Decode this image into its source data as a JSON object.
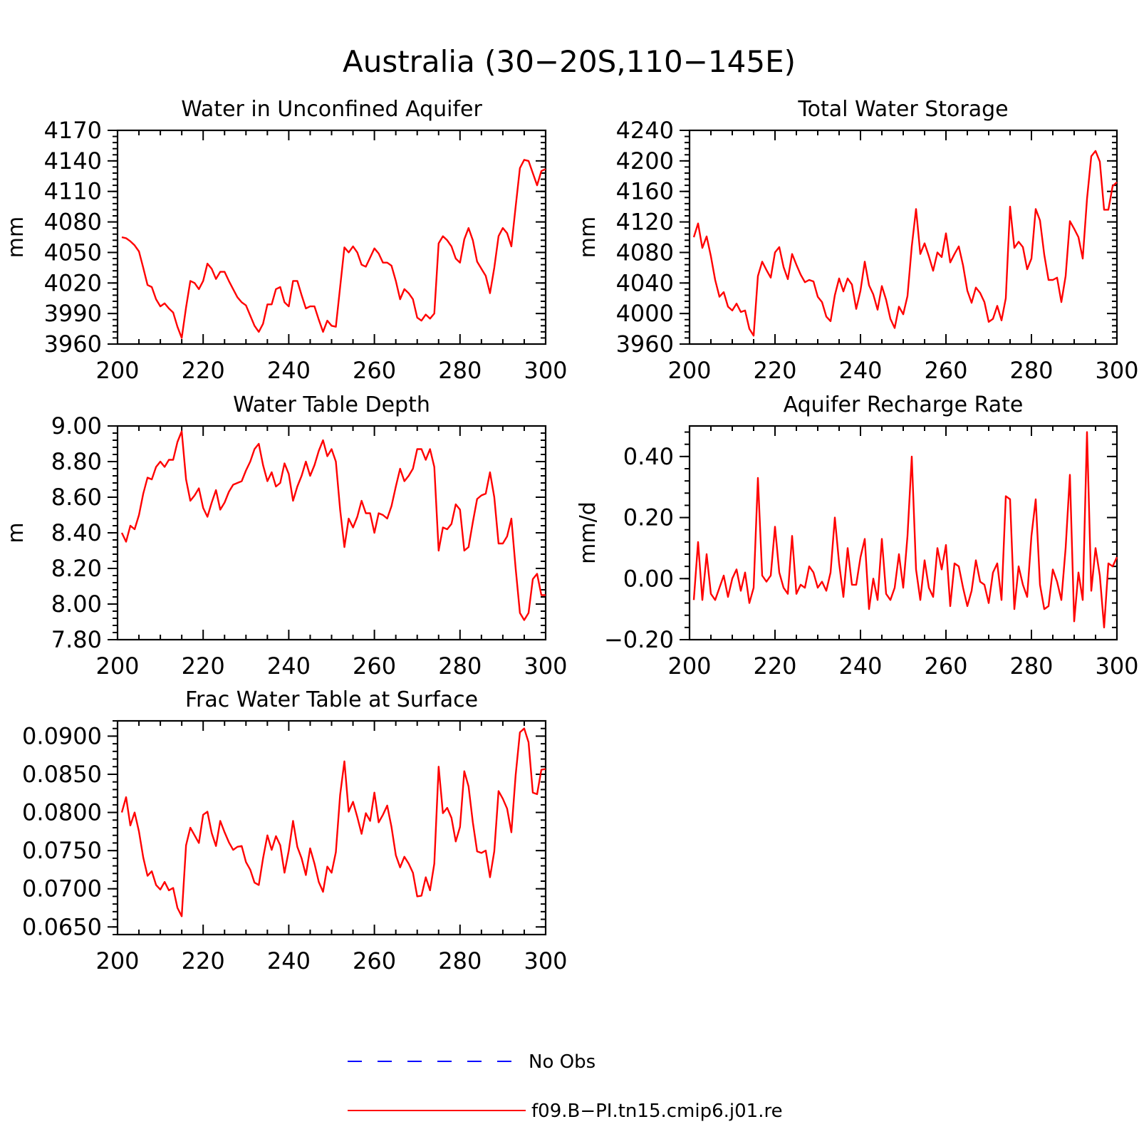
{
  "figure": {
    "title": "Australia (30−20S,110−145E)"
  },
  "colors": {
    "model_line": "#ff0000",
    "obs_line": "#0000ff",
    "axes": "#000000",
    "background": "#ffffff"
  },
  "legend": {
    "placement": "bottom-center",
    "entries": [
      {
        "label": "No Obs",
        "style": "dashed",
        "color": "#0000ff"
      },
      {
        "label": "f09.B−PI.tn15.cmip6.j01.re",
        "style": "solid",
        "color": "#ff0000"
      }
    ]
  },
  "chart_data": [
    {
      "type": "line",
      "title": "Water in Unconfined Aquifer",
      "ylabel": "mm",
      "xlabel": "",
      "xlim": [
        200,
        300
      ],
      "ylim": [
        3960,
        4170
      ],
      "x_ticks": [
        "200",
        "220",
        "240",
        "260",
        "280",
        "300"
      ],
      "y_ticks": [
        "3960",
        "3990",
        "4020",
        "4050",
        "4080",
        "4110",
        "4140",
        "4170"
      ],
      "x_start": 201,
      "series": [
        {
          "name": "f09.B−PI.tn15.cmip6.j01.re",
          "values": [
            4065,
            4064,
            4061,
            4057,
            4051,
            4035,
            4018,
            4016,
            4004,
            3997,
            4000,
            3995,
            3991,
            3977,
            3966,
            3996,
            4022,
            4020,
            4014,
            4022,
            4039,
            4034,
            4024,
            4031,
            4031,
            4022,
            4014,
            4006,
            4001,
            3998,
            3988,
            3978,
            3972,
            3980,
            3999,
            3999,
            4014,
            4016,
            4001,
            3997,
            4022,
            4022,
            4008,
            3995,
            3997,
            3997,
            3984,
            3972,
            3983,
            3978,
            3977,
            4016,
            4055,
            4050,
            4056,
            4050,
            4038,
            4036,
            4045,
            4054,
            4049,
            4040,
            4040,
            4037,
            4022,
            4004,
            4014,
            4010,
            4004,
            3986,
            3983,
            3989,
            3985,
            3990,
            4059,
            4066,
            4062,
            4056,
            4044,
            4040,
            4063,
            4074,
            4062,
            4041,
            4034,
            4027,
            4010,
            4035,
            4066,
            4074,
            4069,
            4056,
            4095,
            4133,
            4141,
            4140,
            4128,
            4116,
            4130,
            4132
          ]
        }
      ]
    },
    {
      "type": "line",
      "title": "Total Water Storage",
      "ylabel": "mm",
      "xlabel": "",
      "xlim": [
        200,
        300
      ],
      "ylim": [
        3960,
        4240
      ],
      "x_ticks": [
        "200",
        "220",
        "240",
        "260",
        "280",
        "300"
      ],
      "y_ticks": [
        "3960",
        "4000",
        "4040",
        "4080",
        "4120",
        "4160",
        "4200",
        "4240"
      ],
      "x_start": 201,
      "series": [
        {
          "name": "f09.B−PI.tn15.cmip6.j01.re",
          "values": [
            4100,
            4118,
            4086,
            4101,
            4075,
            4044,
            4022,
            4028,
            4009,
            4004,
            4013,
            4002,
            4004,
            3980,
            3971,
            4049,
            4068,
            4057,
            4047,
            4080,
            4087,
            4061,
            4045,
            4078,
            4064,
            4051,
            4041,
            4044,
            4042,
            4022,
            4015,
            3996,
            3990,
            4024,
            4046,
            4029,
            4046,
            4038,
            4006,
            4030,
            4068,
            4037,
            4025,
            4005,
            4036,
            4018,
            3993,
            3981,
            4009,
            3999,
            4023,
            4088,
            4137,
            4078,
            4092,
            4075,
            4056,
            4080,
            4074,
            4105,
            4067,
            4078,
            4088,
            4063,
            4030,
            4014,
            4034,
            4027,
            4015,
            3989,
            3993,
            4010,
            3991,
            4020,
            4140,
            4086,
            4094,
            4087,
            4058,
            4072,
            4137,
            4122,
            4077,
            4044,
            4044,
            4047,
            4015,
            4049,
            4121,
            4111,
            4100,
            4072,
            4150,
            4206,
            4213,
            4199,
            4136,
            4136,
            4167,
            4172
          ]
        }
      ]
    },
    {
      "type": "line",
      "title": "Water Table Depth",
      "ylabel": "m",
      "xlabel": "",
      "xlim": [
        200,
        300
      ],
      "ylim": [
        7.8,
        9.0
      ],
      "x_ticks": [
        "200",
        "220",
        "240",
        "260",
        "280",
        "300"
      ],
      "y_ticks": [
        "7.80",
        "8.00",
        "8.20",
        "8.40",
        "8.60",
        "8.80",
        "9.00"
      ],
      "x_start": 201,
      "series": [
        {
          "name": "f09.B−PI.tn15.cmip6.j01.re",
          "values": [
            8.4,
            8.35,
            8.44,
            8.42,
            8.5,
            8.62,
            8.71,
            8.7,
            8.77,
            8.8,
            8.77,
            8.81,
            8.81,
            8.91,
            8.97,
            8.7,
            8.58,
            8.61,
            8.65,
            8.54,
            8.49,
            8.57,
            8.64,
            8.53,
            8.57,
            8.63,
            8.67,
            8.68,
            8.69,
            8.75,
            8.8,
            8.87,
            8.9,
            8.78,
            8.69,
            8.74,
            8.66,
            8.68,
            8.79,
            8.73,
            8.58,
            8.66,
            8.72,
            8.8,
            8.72,
            8.78,
            8.86,
            8.92,
            8.83,
            8.87,
            8.8,
            8.53,
            8.32,
            8.48,
            8.43,
            8.49,
            8.58,
            8.51,
            8.51,
            8.4,
            8.51,
            8.5,
            8.48,
            8.55,
            8.66,
            8.76,
            8.69,
            8.72,
            8.76,
            8.87,
            8.87,
            8.81,
            8.87,
            8.77,
            8.3,
            8.43,
            8.42,
            8.45,
            8.56,
            8.53,
            8.3,
            8.32,
            8.46,
            8.59,
            8.61,
            8.62,
            8.74,
            8.6,
            8.34,
            8.34,
            8.38,
            8.48,
            8.2,
            7.95,
            7.91,
            7.95,
            8.14,
            8.17,
            8.05,
            8.05
          ]
        }
      ]
    },
    {
      "type": "line",
      "title": "Aquifer Recharge Rate",
      "ylabel": "mm/d",
      "xlabel": "",
      "xlim": [
        200,
        300
      ],
      "ylim": [
        -0.2,
        0.5
      ],
      "x_ticks": [
        "200",
        "220",
        "240",
        "260",
        "280",
        "300"
      ],
      "y_ticks": [
        "−0.20",
        "0.00",
        "0.20",
        "0.40"
      ],
      "x_start": 201,
      "series": [
        {
          "name": "f09.B−PI.tn15.cmip6.j01.re",
          "values": [
            -0.07,
            0.12,
            -0.07,
            0.08,
            -0.05,
            -0.07,
            -0.03,
            0.01,
            -0.06,
            0.0,
            0.03,
            -0.04,
            0.02,
            -0.08,
            -0.03,
            0.33,
            0.01,
            -0.01,
            0.01,
            0.17,
            0.02,
            -0.03,
            -0.05,
            0.14,
            -0.05,
            -0.02,
            -0.03,
            0.04,
            0.02,
            -0.03,
            -0.01,
            -0.04,
            0.02,
            0.2,
            0.05,
            -0.06,
            0.1,
            -0.02,
            -0.02,
            0.07,
            0.13,
            -0.1,
            0.0,
            -0.07,
            0.13,
            -0.05,
            -0.07,
            -0.03,
            0.08,
            -0.03,
            0.14,
            0.4,
            0.03,
            -0.07,
            0.06,
            -0.03,
            -0.06,
            0.1,
            0.03,
            0.11,
            -0.09,
            0.05,
            0.04,
            -0.03,
            -0.09,
            -0.04,
            0.06,
            -0.01,
            -0.02,
            -0.08,
            0.02,
            0.05,
            -0.07,
            0.27,
            0.26,
            -0.1,
            0.04,
            -0.02,
            -0.06,
            0.14,
            0.26,
            -0.02,
            -0.1,
            -0.09,
            0.03,
            -0.01,
            -0.07,
            0.1,
            0.34,
            -0.14,
            0.02,
            -0.07,
            0.48,
            -0.04,
            0.1,
            0.01,
            -0.16,
            0.05,
            0.04,
            0.07
          ]
        }
      ]
    },
    {
      "type": "line",
      "title": "Frac Water Table at Surface",
      "ylabel": "",
      "xlabel": "",
      "xlim": [
        200,
        300
      ],
      "ylim": [
        0.064,
        0.092
      ],
      "x_ticks": [
        "200",
        "220",
        "240",
        "260",
        "280",
        "300"
      ],
      "y_ticks": [
        "0.0650",
        "0.0700",
        "0.0750",
        "0.0800",
        "0.0850",
        "0.0900"
      ],
      "x_start": 201,
      "series": [
        {
          "name": "f09.B−PI.tn15.cmip6.j01.re",
          "values": [
            0.08,
            0.082,
            0.0783,
            0.08,
            0.0775,
            0.0741,
            0.0717,
            0.0723,
            0.0705,
            0.0699,
            0.0709,
            0.0698,
            0.0701,
            0.0675,
            0.0664,
            0.0757,
            0.078,
            0.077,
            0.076,
            0.0797,
            0.0801,
            0.0773,
            0.0756,
            0.0789,
            0.0774,
            0.0761,
            0.0751,
            0.0755,
            0.0756,
            0.0735,
            0.0725,
            0.0708,
            0.0705,
            0.074,
            0.077,
            0.0751,
            0.0769,
            0.0757,
            0.0721,
            0.075,
            0.0789,
            0.0755,
            0.074,
            0.0718,
            0.0753,
            0.0733,
            0.0709,
            0.0696,
            0.0729,
            0.0721,
            0.0748,
            0.0823,
            0.0867,
            0.0801,
            0.0814,
            0.0794,
            0.0772,
            0.0799,
            0.0789,
            0.0826,
            0.0787,
            0.0797,
            0.0809,
            0.0781,
            0.0744,
            0.0728,
            0.0742,
            0.0733,
            0.0721,
            0.069,
            0.0691,
            0.0715,
            0.0698,
            0.0733,
            0.086,
            0.0799,
            0.0806,
            0.0793,
            0.0762,
            0.0781,
            0.0854,
            0.0834,
            0.0787,
            0.0749,
            0.0747,
            0.075,
            0.0715,
            0.0749,
            0.0828,
            0.0818,
            0.0805,
            0.0774,
            0.0849,
            0.0905,
            0.091,
            0.0892,
            0.0826,
            0.0824,
            0.0856,
            0.0857
          ]
        }
      ]
    }
  ]
}
